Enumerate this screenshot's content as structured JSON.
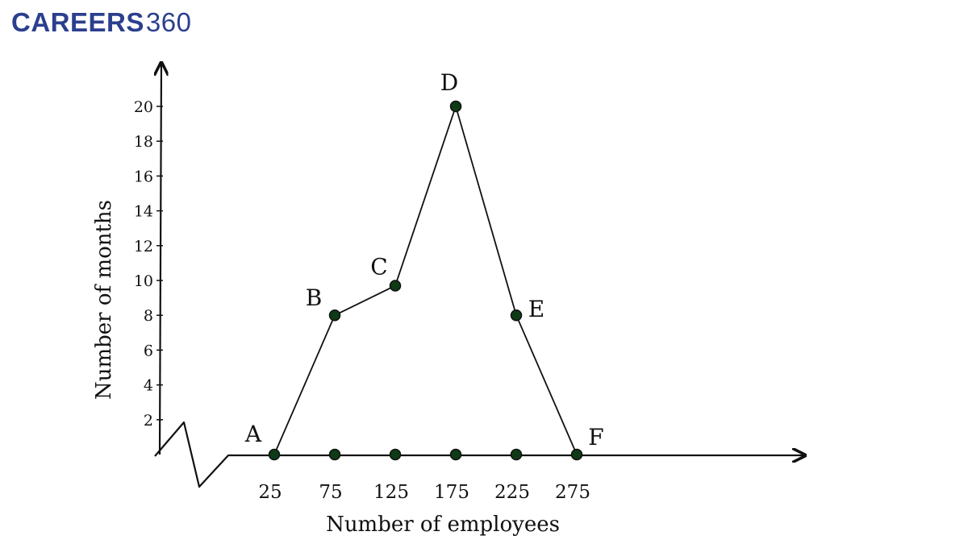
{
  "brand": {
    "name": "CAREERS",
    "number": "360",
    "color": "#2b3f8e"
  },
  "chart_data": {
    "type": "line",
    "xlabel": "Number of employees",
    "ylabel": "Number of months",
    "x_ticks": [
      "25",
      "75",
      "125",
      "175",
      "225",
      "275"
    ],
    "y_ticks": [
      "2",
      "4",
      "6",
      "8",
      "10",
      "12",
      "14",
      "16",
      "18",
      "20"
    ],
    "ylim": [
      0,
      20
    ],
    "x_axis_break": true,
    "points": [
      {
        "label": "A",
        "x": 25,
        "y": 0
      },
      {
        "label": "B",
        "x": 75,
        "y": 8
      },
      {
        "label": "C",
        "x": 125,
        "y": 9.7
      },
      {
        "label": "D",
        "x": 175,
        "y": 20
      },
      {
        "label": "E",
        "x": 225,
        "y": 8
      },
      {
        "label": "F",
        "x": 275,
        "y": 0
      }
    ],
    "line_color": "#111111",
    "marker_color": "#0e3a16",
    "grid": false
  }
}
